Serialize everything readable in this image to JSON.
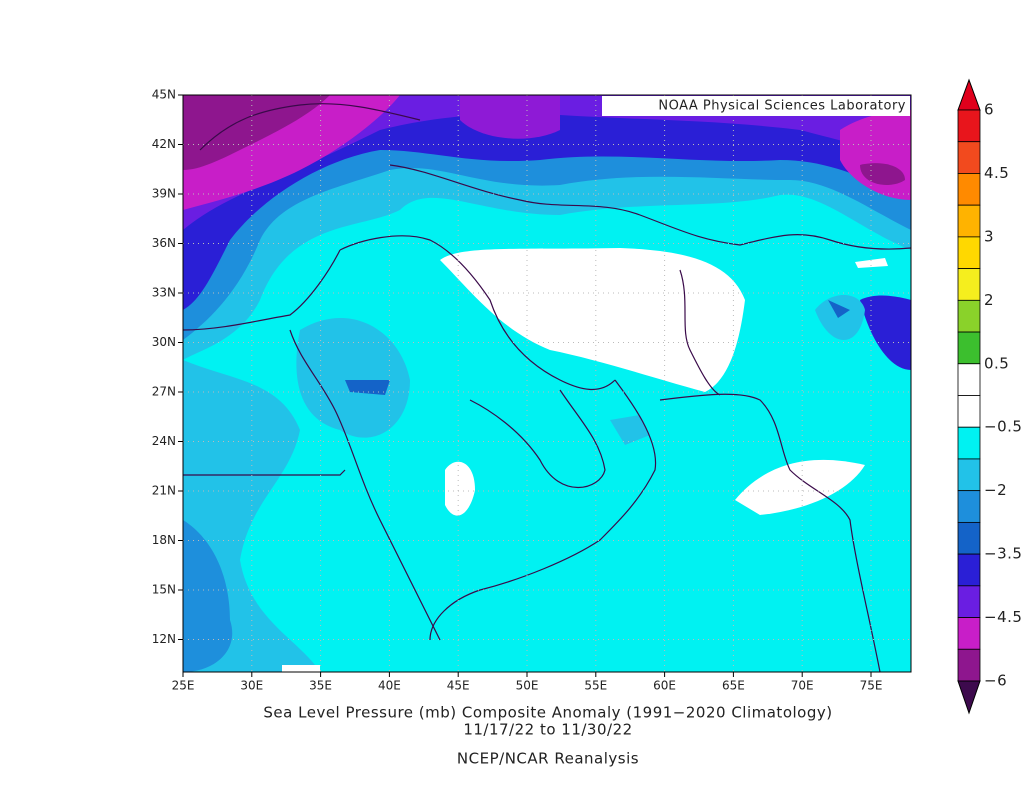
{
  "map": {
    "credit": "NOAA Physical Sciences Laboratory",
    "lon_ticks": [
      "25E",
      "30E",
      "35E",
      "40E",
      "45E",
      "50E",
      "55E",
      "60E",
      "65E",
      "70E",
      "75E"
    ],
    "lat_ticks": [
      "45N",
      "42N",
      "39N",
      "36N",
      "33N",
      "30N",
      "27N",
      "24N",
      "21N",
      "18N",
      "15N",
      "12N"
    ]
  },
  "title": [
    "Sea Level Pressure (mb) Composite Anomaly (1991−2020 Climatology)",
    "11/17/22  to 11/30/22"
  ],
  "source": "NCEP/NCAR Reanalysis",
  "colorbar": {
    "levels": [
      {
        "value": 6,
        "label": "6"
      },
      {
        "value": 4.5,
        "label": "4.5"
      },
      {
        "value": 3,
        "label": "3"
      },
      {
        "value": 2,
        "label": "2"
      },
      {
        "value": 0.5,
        "label": "0.5"
      },
      {
        "value": -0.5,
        "label": "−0.5"
      },
      {
        "value": -2,
        "label": "−2"
      },
      {
        "value": -3.5,
        "label": "−3.5"
      },
      {
        "value": -4.5,
        "label": "−4.5"
      },
      {
        "value": -6,
        "label": "−6"
      }
    ],
    "colors": [
      "#e8151c",
      "#f24a1e",
      "#ff8a00",
      "#ffb300",
      "#ffd800",
      "#f5ee1e",
      "#8ad22a",
      "#3cbf2e",
      "#ffffff",
      "#ffffff",
      "#00f2f2",
      "#22c2e8",
      "#1e8fdc",
      "#1463c8",
      "#2a1fd6",
      "#6a1ee2",
      "#c81ec8",
      "#8e168e"
    ],
    "top_color": "#e0001c",
    "bottom_color": "#3d0a4d"
  }
}
